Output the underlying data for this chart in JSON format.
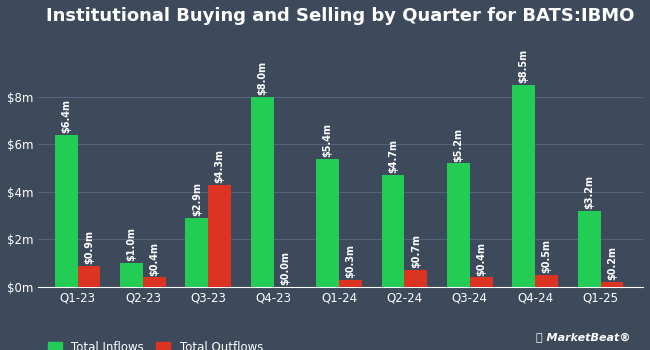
{
  "title": "Institutional Buying and Selling by Quarter for BATS:IBMO",
  "quarters": [
    "Q1-23",
    "Q2-23",
    "Q3-23",
    "Q4-23",
    "Q1-24",
    "Q2-24",
    "Q3-24",
    "Q4-24",
    "Q1-25"
  ],
  "inflows": [
    6.4,
    1.0,
    2.9,
    8.0,
    5.4,
    4.7,
    5.2,
    8.5,
    3.2
  ],
  "outflows": [
    0.9,
    0.4,
    4.3,
    0.0,
    0.3,
    0.7,
    0.4,
    0.5,
    0.2
  ],
  "inflow_labels": [
    "$6.4m",
    "$1.0m",
    "$2.9m",
    "$8.0m",
    "$5.4m",
    "$4.7m",
    "$5.2m",
    "$8.5m",
    "$3.2m"
  ],
  "outflow_labels": [
    "$0.9m",
    "$0.4m",
    "$4.3m",
    "$0.0m",
    "$0.3m",
    "$0.7m",
    "$0.4m",
    "$0.5m",
    "$0.2m"
  ],
  "inflow_color": "#22cc55",
  "outflow_color": "#dd3322",
  "background_color": "#3d4a5c",
  "text_color": "#ffffff",
  "grid_color": "#5a6a7e",
  "yticks": [
    0,
    2,
    4,
    6,
    8
  ],
  "ytick_labels": [
    "$0m",
    "$2m",
    "$4m",
    "$6m",
    "$8m"
  ],
  "ylim": [
    0,
    10.5
  ],
  "bar_width": 0.35,
  "title_fontsize": 13,
  "label_fontsize": 7,
  "tick_fontsize": 8.5,
  "legend_fontsize": 8.5
}
